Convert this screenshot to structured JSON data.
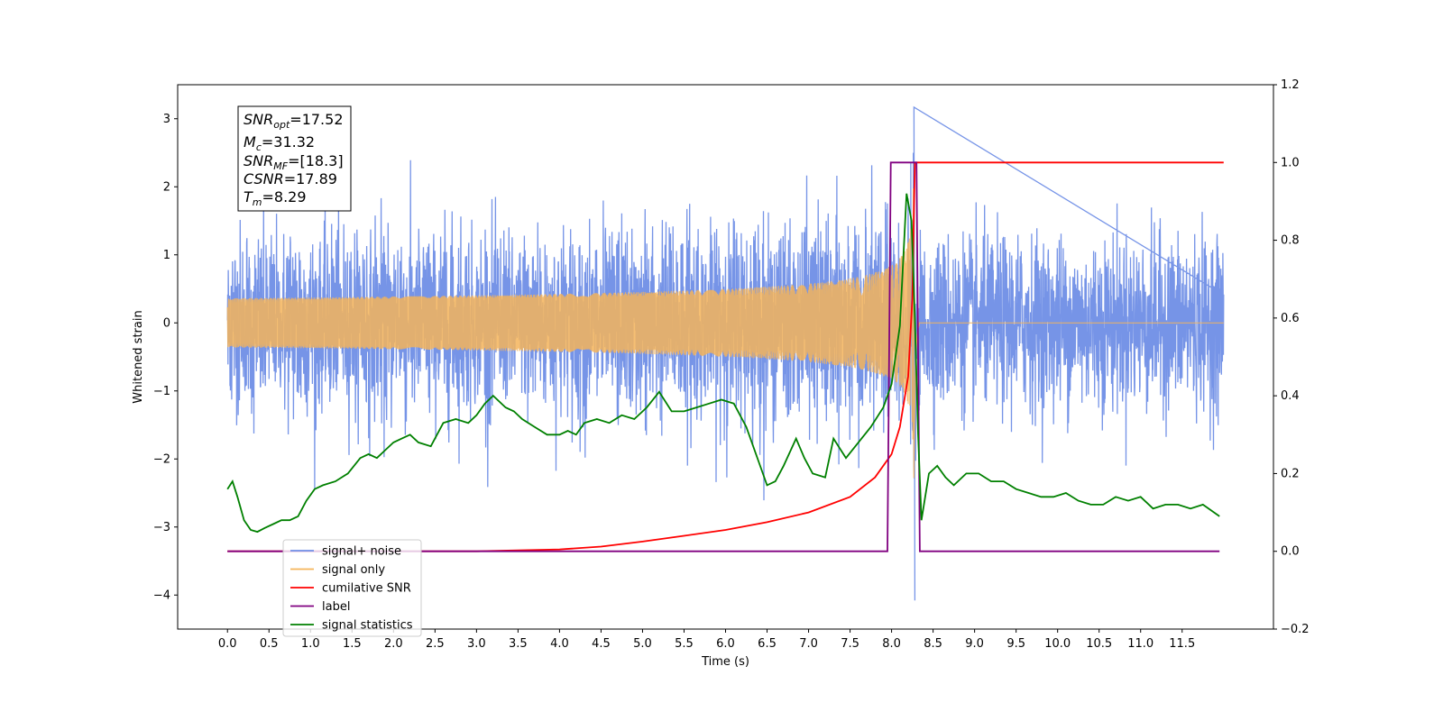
{
  "chart_data": {
    "type": "line",
    "xlabel": "Time (s)",
    "ylabel": "Whitened strain",
    "xlim": [
      -0.6,
      12.6
    ],
    "ylim": [
      -4.5,
      3.5
    ],
    "y2lim": [
      -0.2,
      1.2
    ],
    "x_ticks": [
      "0.0",
      "0.5",
      "1.0",
      "1.5",
      "2.0",
      "2.5",
      "3.0",
      "3.5",
      "4.0",
      "4.5",
      "5.0",
      "5.5",
      "6.0",
      "6.5",
      "7.0",
      "7.5",
      "8.0",
      "8.5",
      "9.0",
      "9.5",
      "10.0",
      "10.5",
      "11.0",
      "11.5"
    ],
    "y_ticks": [
      "3",
      "2",
      "1",
      "0",
      "−1",
      "−2",
      "−3",
      "−4"
    ],
    "y2_ticks": [
      "1.2",
      "1.0",
      "0.8",
      "0.6",
      "0.4",
      "0.2",
      "0.0",
      "−0.2"
    ],
    "annotation": {
      "snr_opt": {
        "main": "SNR",
        "sub": "opt",
        "value": "=17.52"
      },
      "mc": {
        "main": "M",
        "sub": "c",
        "value": "=31.32"
      },
      "snr_mf": {
        "main": "SNR",
        "sub": "MF",
        "value": "=[18.3]"
      },
      "csnr": {
        "main": "CSNR",
        "sub": "",
        "value": "=17.89"
      },
      "tm": {
        "main": "T",
        "sub": "m",
        "value": "=8.29"
      }
    },
    "legend_position": "lower-left",
    "series": [
      {
        "name": "signal+ noise",
        "axis": "left",
        "color": "#6f8ee6",
        "noise_sigma": 0.62,
        "x_range": [
          0.0,
          12.0
        ],
        "merger_time": 8.27,
        "spike_extremes": [
          [
            8.27,
            3.17
          ],
          [
            8.28,
            -4.08
          ]
        ]
      },
      {
        "name": "signal only",
        "axis": "left",
        "color": "#f5b45a",
        "x_range": [
          0.0,
          12.0
        ],
        "merger_time": 8.27,
        "peak_amplitude": 2.9
      },
      {
        "name": "cumilative SNR",
        "axis": "right",
        "color": "#ff0000",
        "x": [
          0.0,
          3.0,
          4.0,
          4.5,
          5.0,
          5.5,
          6.0,
          6.5,
          7.0,
          7.5,
          7.8,
          8.0,
          8.1,
          8.2,
          8.25,
          8.28,
          12.0
        ],
        "values": [
          0.0,
          0.0,
          0.005,
          0.012,
          0.025,
          0.04,
          0.055,
          0.075,
          0.1,
          0.14,
          0.19,
          0.25,
          0.32,
          0.45,
          0.65,
          1.0,
          1.0
        ]
      },
      {
        "name": "label",
        "axis": "right",
        "color": "#800080",
        "x": [
          0.0,
          7.95,
          7.99,
          8.3,
          8.34,
          11.95
        ],
        "values": [
          0.0,
          0.0,
          1.0,
          1.0,
          0.0,
          0.0
        ]
      },
      {
        "name": "signal statistics",
        "axis": "right",
        "color": "#008000",
        "x": [
          0.0,
          0.06,
          0.12,
          0.2,
          0.28,
          0.36,
          0.45,
          0.55,
          0.65,
          0.75,
          0.85,
          0.95,
          1.05,
          1.15,
          1.3,
          1.45,
          1.6,
          1.7,
          1.8,
          1.9,
          2.0,
          2.1,
          2.2,
          2.3,
          2.45,
          2.6,
          2.75,
          2.9,
          3.0,
          3.1,
          3.2,
          3.35,
          3.45,
          3.55,
          3.7,
          3.85,
          4.0,
          4.1,
          4.2,
          4.3,
          4.45,
          4.6,
          4.75,
          4.9,
          5.05,
          5.2,
          5.35,
          5.5,
          5.65,
          5.8,
          5.95,
          6.1,
          6.25,
          6.4,
          6.5,
          6.6,
          6.7,
          6.85,
          6.95,
          7.05,
          7.2,
          7.3,
          7.45,
          7.6,
          7.75,
          7.9,
          8.0,
          8.1,
          8.18,
          8.24,
          8.28,
          8.32,
          8.36,
          8.45,
          8.55,
          8.65,
          8.75,
          8.9,
          9.05,
          9.2,
          9.35,
          9.5,
          9.65,
          9.8,
          9.95,
          10.1,
          10.25,
          10.4,
          10.55,
          10.7,
          10.85,
          11.0,
          11.15,
          11.3,
          11.45,
          11.6,
          11.75,
          11.95
        ],
        "values": [
          0.16,
          0.18,
          0.14,
          0.08,
          0.055,
          0.05,
          0.06,
          0.07,
          0.08,
          0.08,
          0.09,
          0.13,
          0.16,
          0.17,
          0.18,
          0.2,
          0.24,
          0.25,
          0.24,
          0.26,
          0.28,
          0.29,
          0.3,
          0.28,
          0.27,
          0.33,
          0.34,
          0.33,
          0.35,
          0.38,
          0.4,
          0.37,
          0.36,
          0.34,
          0.32,
          0.3,
          0.3,
          0.31,
          0.3,
          0.33,
          0.34,
          0.33,
          0.35,
          0.34,
          0.37,
          0.41,
          0.36,
          0.36,
          0.37,
          0.38,
          0.39,
          0.38,
          0.32,
          0.23,
          0.17,
          0.18,
          0.22,
          0.29,
          0.24,
          0.2,
          0.19,
          0.29,
          0.24,
          0.28,
          0.32,
          0.37,
          0.43,
          0.58,
          0.92,
          0.85,
          0.6,
          0.3,
          0.08,
          0.2,
          0.22,
          0.19,
          0.17,
          0.2,
          0.2,
          0.18,
          0.18,
          0.16,
          0.15,
          0.14,
          0.14,
          0.15,
          0.13,
          0.12,
          0.12,
          0.14,
          0.13,
          0.14,
          0.11,
          0.12,
          0.12,
          0.11,
          0.12,
          0.09
        ]
      }
    ]
  }
}
